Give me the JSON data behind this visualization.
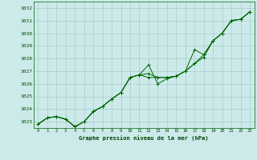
{
  "bg_color": "#cceaea",
  "grid_color": "#aacccc",
  "line_color": "#006600",
  "marker_color": "#006600",
  "xlabel": "Graphe pression niveau de la mer (hPa)",
  "xlim": [
    -0.5,
    23.5
  ],
  "ylim": [
    1022.5,
    1032.5
  ],
  "yticks": [
    1023,
    1024,
    1025,
    1026,
    1027,
    1028,
    1029,
    1030,
    1031,
    1032
  ],
  "xticks": [
    0,
    1,
    2,
    3,
    4,
    5,
    6,
    7,
    8,
    9,
    10,
    11,
    12,
    13,
    14,
    15,
    16,
    17,
    18,
    19,
    20,
    21,
    22,
    23
  ],
  "series": [
    [
      1022.8,
      1023.3,
      1023.4,
      1023.2,
      1022.6,
      1023.0,
      1023.8,
      1024.2,
      1024.8,
      1025.3,
      1026.5,
      1026.7,
      1026.8,
      1026.5,
      1026.5,
      1026.6,
      1027.0,
      1027.6,
      1028.3,
      1029.4,
      1030.0,
      1031.0,
      1031.1,
      1031.7
    ],
    [
      1022.8,
      1023.3,
      1023.4,
      1023.2,
      1022.6,
      1023.0,
      1023.8,
      1024.2,
      1024.8,
      1025.3,
      1026.5,
      1026.7,
      1027.5,
      1026.0,
      1026.4,
      1026.6,
      1027.0,
      1028.7,
      1028.3,
      1029.4,
      1030.0,
      1031.0,
      1031.1,
      1031.7
    ],
    [
      1022.8,
      1023.3,
      1023.4,
      1023.2,
      1022.6,
      1023.0,
      1023.8,
      1024.2,
      1024.8,
      1025.3,
      1026.5,
      1026.7,
      1026.5,
      1026.5,
      1026.5,
      1026.6,
      1027.0,
      1027.6,
      1028.1,
      1029.4,
      1030.0,
      1031.0,
      1031.1,
      1031.7
    ]
  ]
}
